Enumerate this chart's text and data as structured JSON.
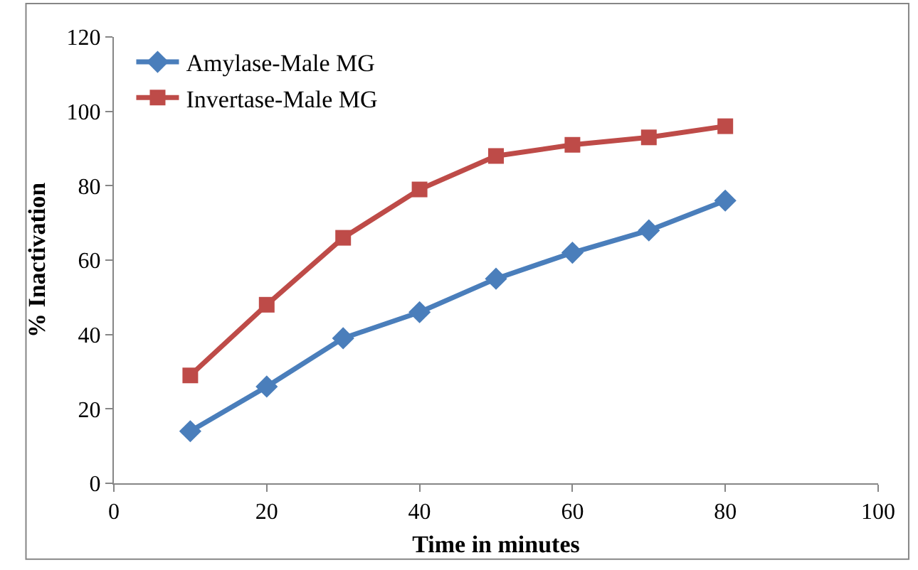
{
  "chart_data": {
    "type": "line",
    "xlabel": "Time in minutes",
    "ylabel": "% Inactivation",
    "x": [
      10,
      20,
      30,
      40,
      50,
      60,
      70,
      80
    ],
    "series": [
      {
        "name": "Amylase-Male MG",
        "color": "#4a7ebb",
        "marker": "diamond",
        "values": [
          14,
          26,
          39,
          46,
          55,
          62,
          68,
          76
        ]
      },
      {
        "name": "Invertase-Male MG",
        "color": "#be4b48",
        "marker": "square",
        "values": [
          29,
          48,
          66,
          79,
          88,
          91,
          93,
          96
        ]
      }
    ],
    "xlim": [
      0,
      100
    ],
    "xticks": [
      0,
      20,
      40,
      60,
      80,
      100
    ],
    "ylim": [
      0,
      120
    ],
    "yticks": [
      0,
      20,
      40,
      60,
      80,
      100,
      120
    ],
    "legend": "top left",
    "line_style": "solid"
  }
}
